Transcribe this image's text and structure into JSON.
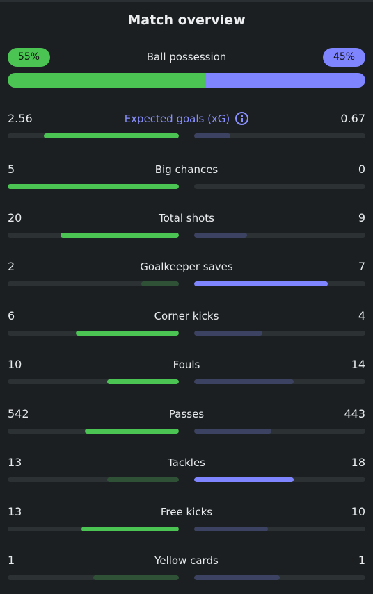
{
  "title": "Match overview",
  "possession": {
    "label": "Ball possession",
    "home": "55%",
    "away": "45%",
    "home_fraction": 0.55
  },
  "stats": [
    {
      "label": "Expected goals (xG)",
      "home": "2.56",
      "away": "0.67",
      "home_fraction": 0.79,
      "away_fraction": 0.21,
      "winner": "home",
      "info_icon": "info-icon"
    },
    {
      "label": "Big chances",
      "home": "5",
      "away": "0",
      "home_fraction": 1.0,
      "away_fraction": 0.0,
      "winner": "home"
    },
    {
      "label": "Total shots",
      "home": "20",
      "away": "9",
      "home_fraction": 0.69,
      "away_fraction": 0.31,
      "winner": "home"
    },
    {
      "label": "Goalkeeper saves",
      "home": "2",
      "away": "7",
      "home_fraction": 0.22,
      "away_fraction": 0.78,
      "winner": "away"
    },
    {
      "label": "Corner kicks",
      "home": "6",
      "away": "4",
      "home_fraction": 0.6,
      "away_fraction": 0.4,
      "winner": "home"
    },
    {
      "label": "Fouls",
      "home": "10",
      "away": "14",
      "home_fraction": 0.42,
      "away_fraction": 0.58,
      "winner": "home"
    },
    {
      "label": "Passes",
      "home": "542",
      "away": "443",
      "home_fraction": 0.55,
      "away_fraction": 0.45,
      "winner": "home"
    },
    {
      "label": "Tackles",
      "home": "13",
      "away": "18",
      "home_fraction": 0.42,
      "away_fraction": 0.58,
      "winner": "away"
    },
    {
      "label": "Free kicks",
      "home": "13",
      "away": "10",
      "home_fraction": 0.57,
      "away_fraction": 0.43,
      "winner": "home"
    },
    {
      "label": "Yellow cards",
      "home": "1",
      "away": "1",
      "home_fraction": 0.5,
      "away_fraction": 0.5,
      "winner": "none"
    }
  ],
  "colors": {
    "home": "#4bc453",
    "away": "#7f85ff",
    "home_dim": "#2f5136",
    "away_dim": "#3c4261",
    "track": "#2c3134",
    "background": "#1b1f22"
  }
}
